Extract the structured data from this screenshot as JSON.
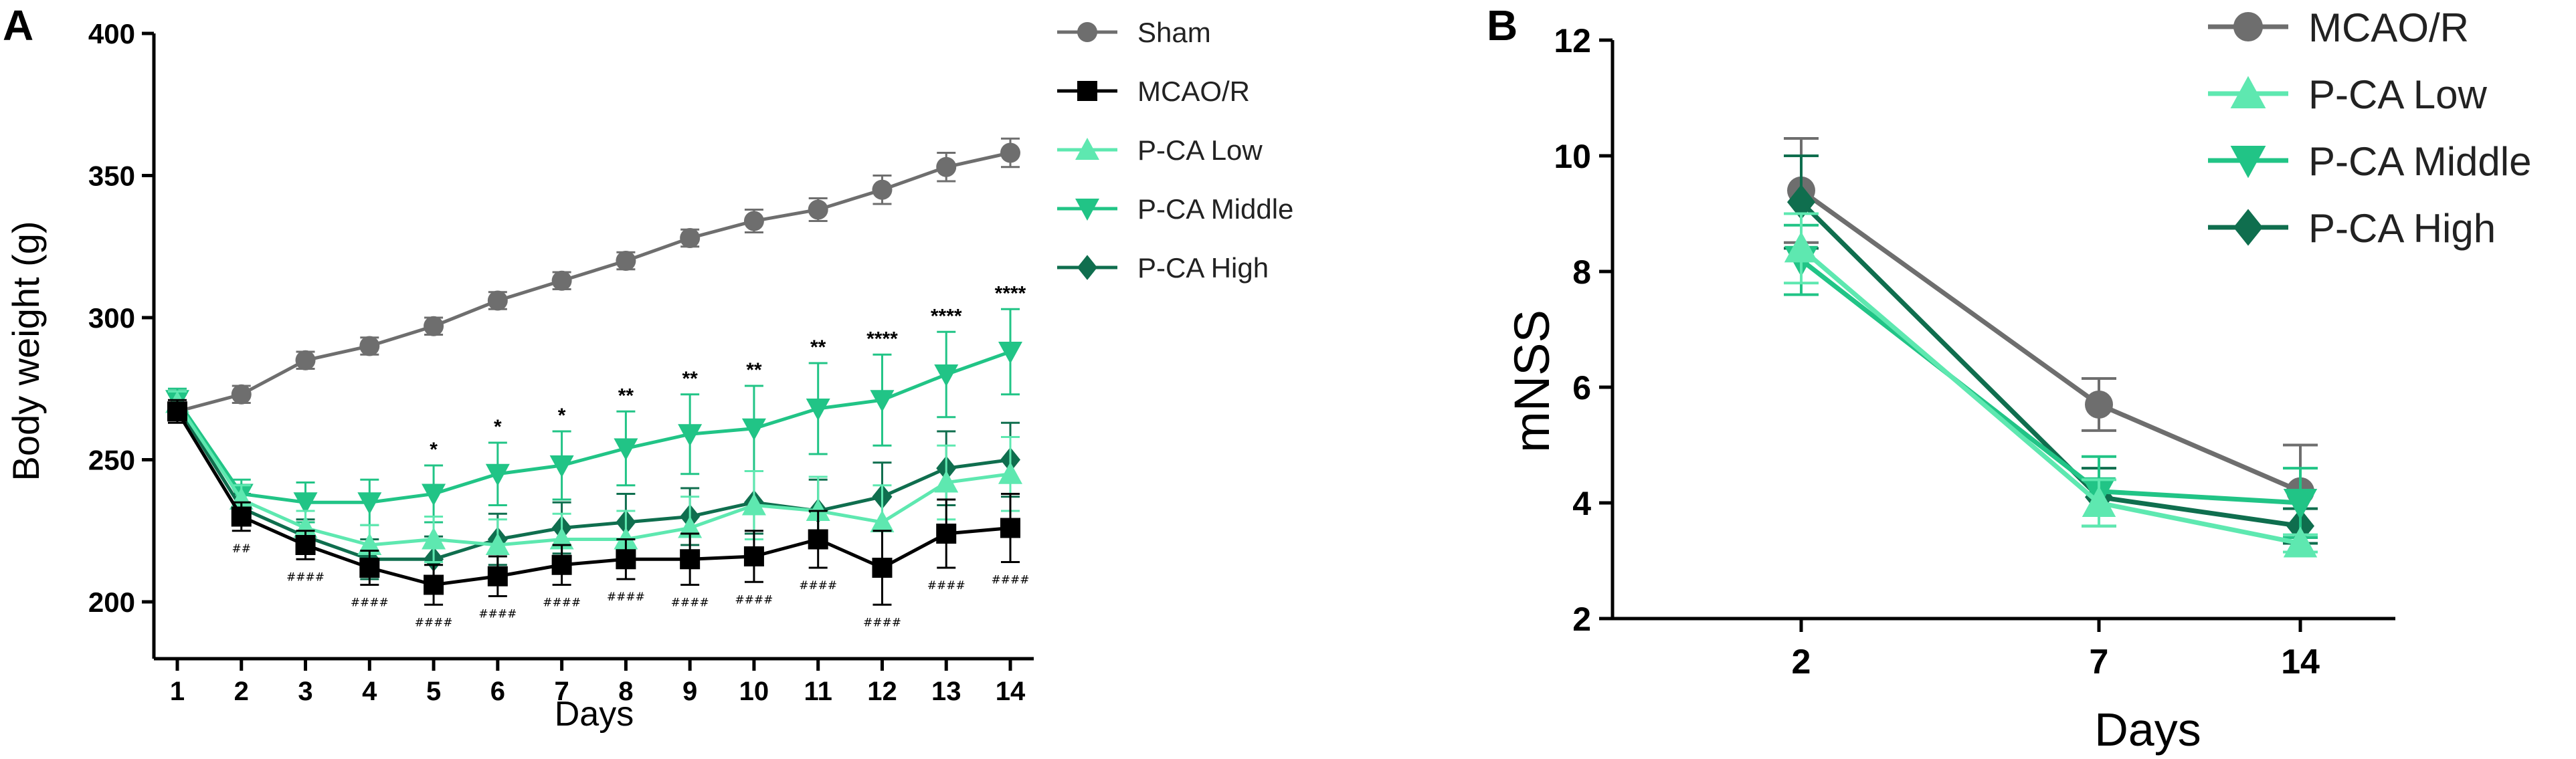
{
  "chart_data": [
    {
      "panel": "A",
      "type": "line",
      "xlabel": "Days",
      "ylabel": "Body weight (g)",
      "x": [
        1,
        2,
        3,
        4,
        5,
        6,
        7,
        8,
        9,
        10,
        11,
        12,
        13,
        14
      ],
      "xlim": [
        0.5,
        14.5
      ],
      "ylim": [
        180,
        400
      ],
      "yticks": [
        200,
        250,
        300,
        350,
        400
      ],
      "legend_position": "right",
      "series": [
        {
          "name": "Sham",
          "color": "#6e6e6e",
          "marker": "circle",
          "values": [
            267,
            273,
            285,
            290,
            297,
            306,
            313,
            320,
            328,
            334,
            338,
            345,
            353,
            358
          ],
          "errors": [
            3,
            3,
            3,
            3,
            3,
            3,
            3,
            3,
            3,
            4,
            4,
            5,
            5,
            5
          ]
        },
        {
          "name": "MCAO/R",
          "color": "#000000",
          "marker": "square",
          "values": [
            267,
            230,
            220,
            212,
            206,
            209,
            213,
            215,
            215,
            216,
            222,
            212,
            224,
            226
          ],
          "errors": [
            4,
            5,
            5,
            6,
            7,
            7,
            7,
            7,
            9,
            9,
            10,
            13,
            12,
            12
          ]
        },
        {
          "name": "P-CA Low",
          "color": "#5ee8b0",
          "marker": "triangle-up",
          "values": [
            270,
            236,
            226,
            220,
            222,
            220,
            222,
            222,
            226,
            234,
            232,
            228,
            242,
            245
          ],
          "errors": [
            4,
            5,
            6,
            7,
            8,
            9,
            9,
            10,
            11,
            12,
            12,
            13,
            13,
            13
          ]
        },
        {
          "name": "P-CA Middle",
          "color": "#21c486",
          "marker": "triangle-down",
          "values": [
            271,
            238,
            235,
            235,
            238,
            245,
            248,
            254,
            259,
            261,
            268,
            271,
            280,
            288
          ],
          "errors": [
            4,
            5,
            7,
            8,
            10,
            11,
            12,
            13,
            14,
            15,
            16,
            16,
            15,
            15
          ]
        },
        {
          "name": "P-CA High",
          "color": "#0f6e4e",
          "marker": "diamond",
          "values": [
            269,
            233,
            223,
            215,
            215,
            222,
            226,
            228,
            230,
            235,
            232,
            237,
            247,
            250
          ],
          "errors": [
            4,
            5,
            6,
            7,
            8,
            9,
            9,
            10,
            10,
            11,
            11,
            12,
            13,
            13
          ]
        }
      ],
      "annotations": [
        {
          "x": 5,
          "text": "*"
        },
        {
          "x": 6,
          "text": "*"
        },
        {
          "x": 7,
          "text": "*"
        },
        {
          "x": 8,
          "text": "**"
        },
        {
          "x": 9,
          "text": "**"
        },
        {
          "x": 10,
          "text": "**"
        },
        {
          "x": 11,
          "text": "**"
        },
        {
          "x": 12,
          "text": "****"
        },
        {
          "x": 13,
          "text": "****"
        },
        {
          "x": 14,
          "text": "****"
        }
      ],
      "hash_annotations": [
        {
          "x": 2,
          "text": "##"
        },
        {
          "x": 3,
          "text": "####"
        },
        {
          "x": 4,
          "text": "####"
        },
        {
          "x": 5,
          "text": "####"
        },
        {
          "x": 6,
          "text": "####"
        },
        {
          "x": 7,
          "text": "####"
        },
        {
          "x": 8,
          "text": "####"
        },
        {
          "x": 9,
          "text": "####"
        },
        {
          "x": 10,
          "text": "####"
        },
        {
          "x": 11,
          "text": "####"
        },
        {
          "x": 12,
          "text": "####"
        },
        {
          "x": 13,
          "text": "####"
        },
        {
          "x": 14,
          "text": "####"
        }
      ]
    },
    {
      "panel": "B",
      "type": "line",
      "xlabel": "Days",
      "ylabel": "mNSS",
      "categories": [
        "2",
        "7",
        "14"
      ],
      "ylim": [
        2,
        12
      ],
      "yticks": [
        2,
        4,
        6,
        8,
        10,
        12
      ],
      "legend_position": "top-right",
      "series": [
        {
          "name": "MCAO/R",
          "color": "#6e6e6e",
          "marker": "circle",
          "values": [
            9.4,
            5.7,
            4.2
          ],
          "errors": [
            0.9,
            0.45,
            0.8
          ]
        },
        {
          "name": "P-CA Low",
          "color": "#5ee8b0",
          "marker": "triangle-up",
          "values": [
            8.4,
            4.0,
            3.3
          ],
          "errors": [
            0.6,
            0.4,
            0.15
          ]
        },
        {
          "name": "P-CA Middle",
          "color": "#21c486",
          "marker": "triangle-down",
          "values": [
            8.2,
            4.2,
            4.0
          ],
          "errors": [
            0.6,
            0.6,
            0.6
          ]
        },
        {
          "name": "P-CA High",
          "color": "#0f6e4e",
          "marker": "diamond",
          "values": [
            9.2,
            4.1,
            3.6
          ],
          "errors": [
            0.8,
            0.5,
            0.3
          ]
        }
      ]
    }
  ]
}
